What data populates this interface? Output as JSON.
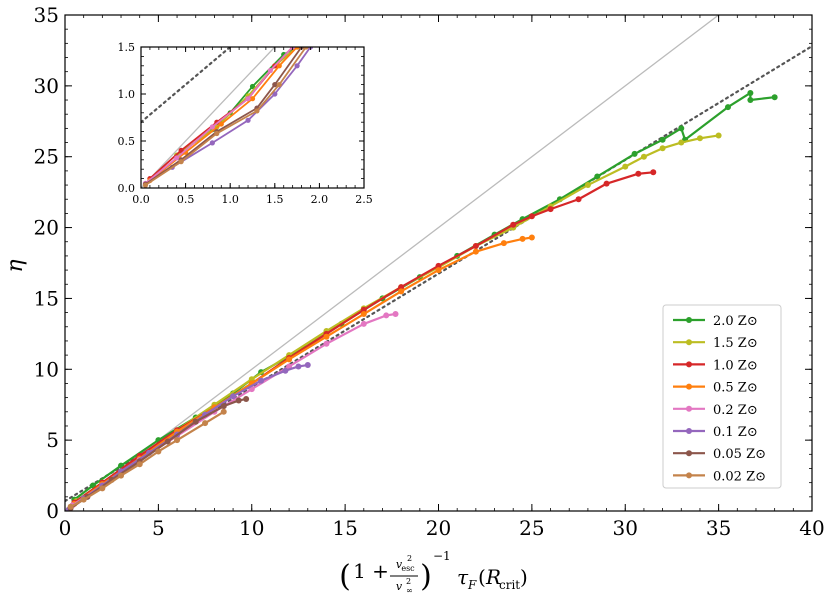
{
  "chart_data": {
    "type": "line",
    "title": "",
    "xlabel": "(1 + v_esc^2 / v_∞^2)^-1 τ_F(R_crit)",
    "ylabel": "η",
    "xlim": [
      0,
      40
    ],
    "ylim": [
      0,
      35
    ],
    "xticks": [
      "0",
      "5",
      "10",
      "15",
      "20",
      "25",
      "30",
      "35",
      "40"
    ],
    "yticks": [
      "0",
      "5",
      "10",
      "15",
      "20",
      "25",
      "30",
      "35"
    ],
    "legend_position": "lower-right",
    "reference_lines": [
      {
        "style": "solid",
        "color": "#bbbbbb",
        "x": [
          0,
          35
        ],
        "y": [
          0,
          35
        ]
      },
      {
        "style": "dotted",
        "color": "#555555",
        "x": [
          0,
          40
        ],
        "y": [
          0.7,
          32.8
        ]
      }
    ],
    "series": [
      {
        "name": "2.0 Z⊙",
        "color": "#2ca02c",
        "x": [
          0.5,
          1.5,
          3,
          5,
          7,
          9,
          10.5,
          12.8,
          14.8,
          17,
          19,
          21,
          23,
          24.5,
          26.5,
          28.5,
          30.5,
          32,
          33,
          33.2,
          35.5,
          36.7,
          36.7,
          38
        ],
        "y": [
          0.8,
          1.8,
          3.2,
          5,
          6.6,
          8.3,
          9.8,
          11.5,
          13.2,
          15,
          16.5,
          18,
          19.5,
          20.6,
          22,
          23.6,
          25.2,
          26.2,
          27,
          26.2,
          28.5,
          29.5,
          29,
          29.2
        ]
      },
      {
        "name": "1.5 Z⊙",
        "color": "#bcbd22",
        "x": [
          0.6,
          2,
          4,
          6,
          8,
          10,
          12,
          14,
          16,
          18,
          20,
          22,
          24,
          26,
          28,
          30,
          31,
          32,
          33,
          34,
          35
        ],
        "y": [
          0.7,
          2,
          3.8,
          5.7,
          7.5,
          9.3,
          11,
          12.7,
          14.3,
          15.8,
          17.2,
          18.7,
          20,
          21.5,
          23,
          24.3,
          25,
          25.6,
          26,
          26.3,
          26.5
        ]
      },
      {
        "name": "1.0 Z⊙",
        "color": "#d62728",
        "x": [
          0.5,
          2,
          4,
          6,
          8,
          10,
          12,
          14,
          16,
          18,
          20,
          22,
          24,
          25,
          26,
          27.5,
          29,
          30.7,
          31.5
        ],
        "y": [
          0.6,
          2,
          3.9,
          5.7,
          7.3,
          9,
          10.8,
          12.5,
          14.2,
          15.8,
          17.3,
          18.7,
          20.2,
          20.8,
          21.3,
          22,
          23.1,
          23.8,
          23.9
        ]
      },
      {
        "name": "0.5 Z⊙",
        "color": "#ff7f0e",
        "x": [
          0.5,
          2,
          4,
          6,
          8,
          10,
          12,
          14,
          16,
          18,
          20,
          22,
          23.5,
          24.5,
          25
        ],
        "y": [
          0.5,
          1.9,
          3.7,
          5.6,
          7.3,
          9,
          10.7,
          12.3,
          13.9,
          15.5,
          17,
          18.3,
          18.9,
          19.2,
          19.3
        ]
      },
      {
        "name": "0.2 Z⊙",
        "color": "#e377c2",
        "x": [
          0.4,
          2,
          4,
          6,
          8,
          10,
          12,
          14,
          16,
          17.2,
          17.7
        ],
        "y": [
          0.4,
          1.8,
          3.6,
          5.3,
          7,
          8.6,
          10.2,
          11.8,
          13.2,
          13.8,
          13.9
        ]
      },
      {
        "name": "0.1 Z⊙",
        "color": "#9467bd",
        "x": [
          0.2,
          1,
          2,
          3,
          4.5,
          6,
          7.5,
          9,
          10.5,
          11.8,
          12.5,
          13
        ],
        "y": [
          0.1,
          0.9,
          1.8,
          2.8,
          4.1,
          5.4,
          6.8,
          8.1,
          9.2,
          9.9,
          10.2,
          10.3
        ]
      },
      {
        "name": "0.05 Z⊙",
        "color": "#8c564b",
        "x": [
          0.3,
          1.2,
          2.5,
          4,
          5.5,
          7,
          8.5,
          9.3,
          9.7
        ],
        "y": [
          0.2,
          1,
          2.2,
          3.5,
          4.9,
          6.3,
          7.4,
          7.8,
          7.9
        ]
      },
      {
        "name": "0.02 Z⊙",
        "color": "#c4834b",
        "x": [
          0.3,
          1,
          2,
          3,
          4,
          5,
          6,
          7.5,
          8.5
        ],
        "y": [
          0.3,
          0.8,
          1.6,
          2.5,
          3.3,
          4.2,
          5,
          6.2,
          7
        ]
      }
    ],
    "inset": {
      "xlim": [
        0,
        2.5
      ],
      "ylim": [
        0,
        1.5
      ],
      "xticks": [
        "0.0",
        "0.5",
        "1.0",
        "1.5",
        "2.0",
        "2.5"
      ],
      "yticks": [
        "0.0",
        "0.5",
        "1.0",
        "1.5"
      ],
      "series": [
        {
          "name": "2.0 Z⊙",
          "color": "#2ca02c",
          "x": [
            0.45,
            0.8,
            1.0,
            1.25,
            1.6,
            1.75
          ],
          "y": [
            0.38,
            0.62,
            0.8,
            1.08,
            1.42,
            1.5
          ]
        },
        {
          "name": "1.5 Z⊙",
          "color": "#bcbd22",
          "x": [
            0.4,
            0.85,
            1.2,
            1.5,
            1.75
          ],
          "y": [
            0.35,
            0.65,
            0.98,
            1.3,
            1.5
          ]
        },
        {
          "name": "1.0 Z⊙",
          "color": "#d62728",
          "x": [
            0.1,
            0.45,
            0.85,
            1.2,
            1.5,
            1.7
          ],
          "y": [
            0.1,
            0.4,
            0.7,
            0.95,
            1.3,
            1.5
          ]
        },
        {
          "name": "0.5 Z⊙",
          "color": "#ff7f0e",
          "x": [
            0.1,
            0.5,
            0.9,
            1.25,
            1.55,
            1.75
          ],
          "y": [
            0.08,
            0.38,
            0.68,
            0.95,
            1.3,
            1.5
          ]
        },
        {
          "name": "0.2 Z⊙",
          "color": "#e377c2",
          "x": [
            0.05,
            0.4,
            0.8,
            1.2,
            1.45,
            1.7
          ],
          "y": [
            0.05,
            0.32,
            0.65,
            0.95,
            1.25,
            1.5
          ]
        },
        {
          "name": "0.1 Z⊙",
          "color": "#9467bd",
          "x": [
            0.05,
            0.35,
            0.8,
            1.2,
            1.5,
            1.75,
            1.9
          ],
          "y": [
            0.04,
            0.22,
            0.48,
            0.72,
            1.0,
            1.3,
            1.5
          ]
        },
        {
          "name": "0.05 Z⊙",
          "color": "#8c564b",
          "x": [
            0.05,
            0.45,
            0.85,
            1.3,
            1.5,
            1.8
          ],
          "y": [
            0.04,
            0.3,
            0.6,
            0.85,
            1.1,
            1.5
          ]
        },
        {
          "name": "0.02 Z⊙",
          "color": "#c4834b",
          "x": [
            0.05,
            0.45,
            0.85,
            1.3,
            1.55,
            1.85
          ],
          "y": [
            0.03,
            0.28,
            0.58,
            0.82,
            1.1,
            1.5
          ]
        }
      ],
      "reference_lines": [
        {
          "style": "solid",
          "color": "#bbbbbb",
          "x": [
            0,
            1.5
          ],
          "y": [
            0,
            1.5
          ]
        },
        {
          "style": "dotted",
          "color": "#555555",
          "x": [
            0,
            1.0
          ],
          "y": [
            0.7,
            1.5
          ]
        }
      ]
    }
  }
}
